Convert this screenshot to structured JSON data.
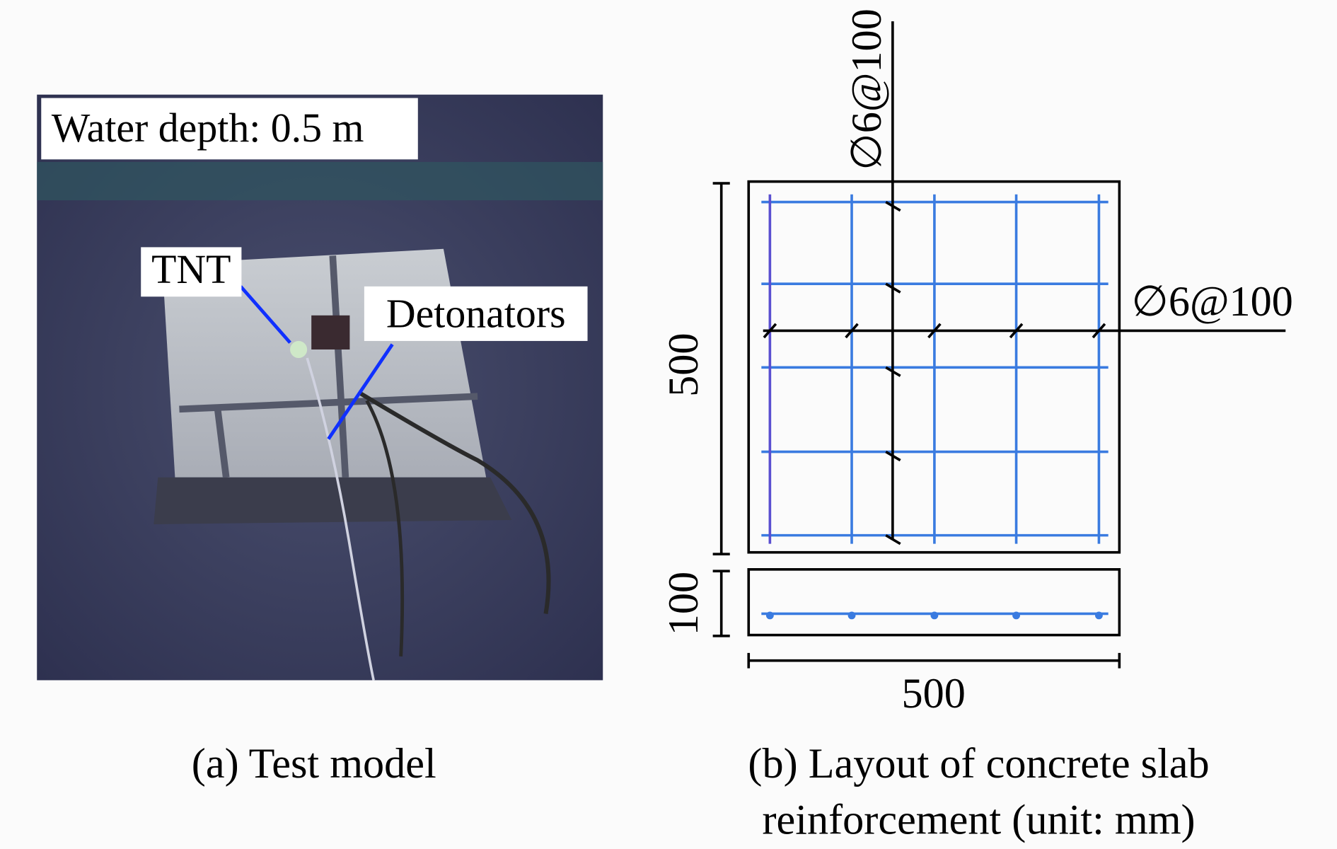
{
  "panel_a": {
    "water_depth": "Water depth: 0.5 m",
    "tnt_label": "TNT",
    "detonators_label": "Detonators",
    "caption": "(a) Test model"
  },
  "panel_b": {
    "rebar_vertical": "∅6@100",
    "rebar_horizontal": "∅6@100",
    "plan_dimension": "500",
    "section_thickness": "100",
    "width_dimension": "500",
    "caption_lines": [
      "(b) Layout of concrete slab",
      "reinforcement (unit: mm)"
    ]
  }
}
